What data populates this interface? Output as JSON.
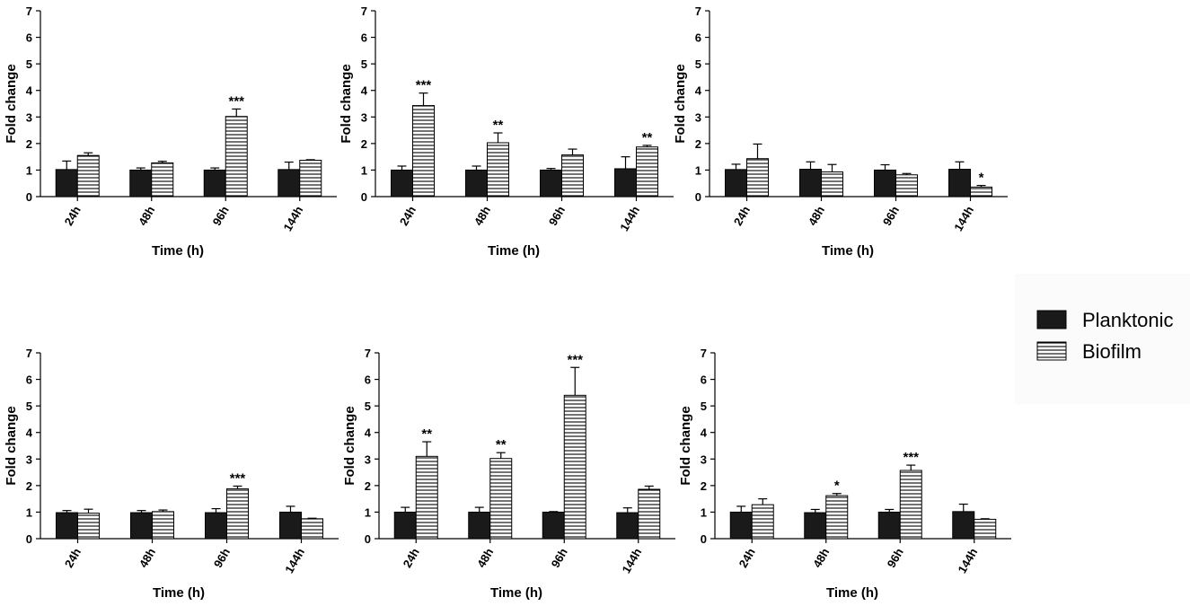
{
  "legend": {
    "items": [
      {
        "label": "Planktonic",
        "style": "solid",
        "color": "#1a1a1a"
      },
      {
        "label": "Biofilm",
        "style": "horizontal-hatch",
        "color": "#000000"
      }
    ]
  },
  "chart_data": [
    {
      "type": "bar",
      "panel": "top-left",
      "categories": [
        "24h",
        "48h",
        "96h",
        "144h"
      ],
      "xlabel": "Time (h)",
      "ylabel": "Fold change",
      "ylim": [
        0,
        7
      ],
      "yticks": [
        0,
        1,
        2,
        3,
        4,
        5,
        6,
        7
      ],
      "series": [
        {
          "name": "Planktonic",
          "values": [
            1.02,
            1.0,
            1.0,
            1.02
          ],
          "errors": [
            0.32,
            0.08,
            0.08,
            0.28
          ]
        },
        {
          "name": "Biofilm",
          "values": [
            1.55,
            1.27,
            3.02,
            1.37
          ],
          "errors": [
            0.1,
            0.06,
            0.28,
            0.02
          ]
        }
      ],
      "significance": [
        "",
        "",
        "***",
        ""
      ]
    },
    {
      "type": "bar",
      "panel": "top-middle",
      "categories": [
        "24h",
        "48h",
        "96h",
        "144h"
      ],
      "xlabel": "Time (h)",
      "ylabel": "Fold change",
      "ylim": [
        0,
        7
      ],
      "yticks": [
        0,
        1,
        2,
        3,
        4,
        5,
        6,
        7
      ],
      "series": [
        {
          "name": "Planktonic",
          "values": [
            1.0,
            1.0,
            1.0,
            1.05
          ],
          "errors": [
            0.15,
            0.15,
            0.06,
            0.45
          ]
        },
        {
          "name": "Biofilm",
          "values": [
            3.43,
            2.03,
            1.57,
            1.87
          ],
          "errors": [
            0.47,
            0.37,
            0.22,
            0.06
          ]
        }
      ],
      "significance": [
        "***",
        "**",
        "",
        "**"
      ]
    },
    {
      "type": "bar",
      "panel": "top-right",
      "categories": [
        "24h",
        "48h",
        "96h",
        "144h"
      ],
      "xlabel": "Time (h)",
      "ylabel": "Fold change",
      "ylim": [
        0,
        7
      ],
      "yticks": [
        0,
        1,
        2,
        3,
        4,
        5,
        6,
        7
      ],
      "series": [
        {
          "name": "Planktonic",
          "values": [
            1.02,
            1.03,
            1.0,
            1.03
          ],
          "errors": [
            0.2,
            0.28,
            0.2,
            0.28
          ]
        },
        {
          "name": "Biofilm",
          "values": [
            1.43,
            0.93,
            0.82,
            0.36
          ],
          "errors": [
            0.55,
            0.28,
            0.05,
            0.06
          ]
        }
      ],
      "significance": [
        "",
        "",
        "",
        "*"
      ]
    },
    {
      "type": "bar",
      "panel": "bottom-left",
      "categories": [
        "24h",
        "48h",
        "96h",
        "144h"
      ],
      "xlabel": "Time (h)",
      "ylabel": "Fold change",
      "ylim": [
        0,
        7
      ],
      "yticks": [
        0,
        1,
        2,
        3,
        4,
        5,
        6,
        7
      ],
      "series": [
        {
          "name": "Planktonic",
          "values": [
            0.98,
            0.98,
            0.98,
            1.0
          ],
          "errors": [
            0.08,
            0.08,
            0.15,
            0.22
          ]
        },
        {
          "name": "Biofilm",
          "values": [
            0.96,
            1.02,
            1.88,
            0.75
          ],
          "errors": [
            0.15,
            0.06,
            0.1,
            0.02
          ]
        }
      ],
      "significance": [
        "",
        "",
        "***",
        ""
      ]
    },
    {
      "type": "bar",
      "panel": "bottom-middle",
      "categories": [
        "24h",
        "48h",
        "96h",
        "144h"
      ],
      "xlabel": "Time (h)",
      "ylabel": "Fold change",
      "ylim": [
        0,
        7
      ],
      "yticks": [
        0,
        1,
        2,
        3,
        4,
        5,
        6,
        7
      ],
      "series": [
        {
          "name": "Planktonic",
          "values": [
            1.0,
            1.0,
            1.0,
            0.98
          ],
          "errors": [
            0.18,
            0.18,
            0.02,
            0.18
          ]
        },
        {
          "name": "Biofilm",
          "values": [
            3.1,
            3.02,
            5.4,
            1.86
          ],
          "errors": [
            0.55,
            0.22,
            1.05,
            0.12
          ]
        }
      ],
      "significance": [
        "**",
        "**",
        "***",
        ""
      ]
    },
    {
      "type": "bar",
      "panel": "bottom-right",
      "categories": [
        "24h",
        "48h",
        "96h",
        "144h"
      ],
      "xlabel": "Time (h)",
      "ylabel": "Fold change",
      "ylim": [
        0,
        7
      ],
      "yticks": [
        0,
        1,
        2,
        3,
        4,
        5,
        6,
        7
      ],
      "series": [
        {
          "name": "Planktonic",
          "values": [
            1.0,
            0.98,
            1.0,
            1.02
          ],
          "errors": [
            0.22,
            0.12,
            0.1,
            0.28
          ]
        },
        {
          "name": "Biofilm",
          "values": [
            1.28,
            1.62,
            2.57,
            0.73
          ],
          "errors": [
            0.22,
            0.08,
            0.2,
            0.02
          ]
        }
      ],
      "significance": [
        "",
        "*",
        "***",
        ""
      ]
    }
  ]
}
